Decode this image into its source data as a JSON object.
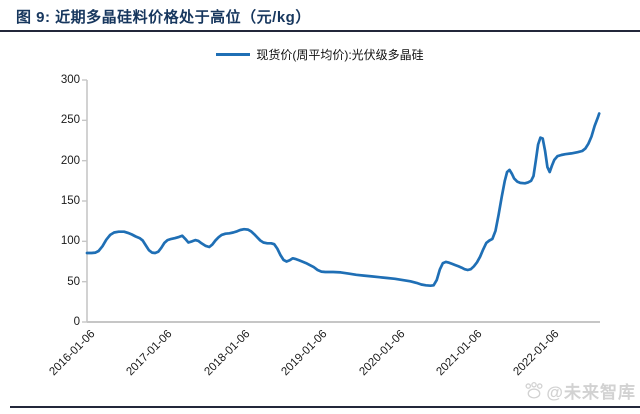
{
  "figure": {
    "title": "图 9: 近期多晶硅料价格处于高位（元/kg）"
  },
  "watermark": {
    "text": "@未来智库"
  },
  "chart_data": {
    "type": "line",
    "title": "图 9: 近期多晶硅料价格处于高位（元/kg）",
    "unit": "元/kg",
    "legend_label": "现货价(周平均价):光伏级多晶硅",
    "legend_position": "top-center",
    "grid": false,
    "line_color": "#1F6FB5",
    "axis_color": "#c6c6c6",
    "ylim": [
      0,
      300
    ],
    "y_ticks": [
      0,
      50,
      100,
      150,
      200,
      250,
      300
    ],
    "x_tick_labels": [
      "2016-01-06",
      "2017-01-06",
      "2018-01-06",
      "2019-01-06",
      "2020-01-06",
      "2021-01-06",
      "2022-01-06"
    ],
    "x_tick_years": [
      2016.02,
      2017.02,
      2018.02,
      2019.02,
      2020.02,
      2021.02,
      2022.02
    ],
    "xlim_years": [
      2016.02,
      2022.65
    ],
    "series": [
      {
        "name": "现货价(周平均价):光伏级多晶硅",
        "points_year_value": [
          [
            2016.02,
            85.5
          ],
          [
            2016.08,
            85.5
          ],
          [
            2016.13,
            86
          ],
          [
            2016.17,
            88
          ],
          [
            2016.22,
            94
          ],
          [
            2016.27,
            102
          ],
          [
            2016.32,
            108
          ],
          [
            2016.37,
            111
          ],
          [
            2016.43,
            112
          ],
          [
            2016.5,
            112
          ],
          [
            2016.55,
            110.5
          ],
          [
            2016.6,
            108.5
          ],
          [
            2016.65,
            106
          ],
          [
            2016.7,
            104
          ],
          [
            2016.74,
            101
          ],
          [
            2016.78,
            95
          ],
          [
            2016.82,
            89
          ],
          [
            2016.86,
            86
          ],
          [
            2016.9,
            85.5
          ],
          [
            2016.94,
            87
          ],
          [
            2016.98,
            92
          ],
          [
            2017.02,
            98
          ],
          [
            2017.06,
            101.5
          ],
          [
            2017.11,
            103
          ],
          [
            2017.16,
            104
          ],
          [
            2017.21,
            105.5
          ],
          [
            2017.25,
            107
          ],
          [
            2017.29,
            103
          ],
          [
            2017.33,
            98.5
          ],
          [
            2017.38,
            100
          ],
          [
            2017.42,
            101.5
          ],
          [
            2017.46,
            100.5
          ],
          [
            2017.5,
            97.5
          ],
          [
            2017.55,
            94.5
          ],
          [
            2017.6,
            93
          ],
          [
            2017.64,
            96
          ],
          [
            2017.68,
            101
          ],
          [
            2017.72,
            105
          ],
          [
            2017.76,
            108
          ],
          [
            2017.81,
            109.5
          ],
          [
            2017.86,
            110
          ],
          [
            2017.91,
            111
          ],
          [
            2017.96,
            112.5
          ],
          [
            2018.0,
            114
          ],
          [
            2018.05,
            115
          ],
          [
            2018.1,
            114.5
          ],
          [
            2018.14,
            112.5
          ],
          [
            2018.18,
            109
          ],
          [
            2018.22,
            105
          ],
          [
            2018.26,
            101
          ],
          [
            2018.3,
            98.5
          ],
          [
            2018.35,
            97.5
          ],
          [
            2018.4,
            97.5
          ],
          [
            2018.44,
            96.5
          ],
          [
            2018.48,
            91
          ],
          [
            2018.52,
            83
          ],
          [
            2018.56,
            77
          ],
          [
            2018.6,
            75
          ],
          [
            2018.64,
            76.5
          ],
          [
            2018.68,
            79
          ],
          [
            2018.72,
            78
          ],
          [
            2018.76,
            76.5
          ],
          [
            2018.8,
            75
          ],
          [
            2018.85,
            73
          ],
          [
            2018.9,
            70.5
          ],
          [
            2018.95,
            68
          ],
          [
            2019.0,
            64.5
          ],
          [
            2019.05,
            62.5
          ],
          [
            2019.1,
            62
          ],
          [
            2019.2,
            62
          ],
          [
            2019.3,
            61.5
          ],
          [
            2019.4,
            60
          ],
          [
            2019.5,
            58.5
          ],
          [
            2019.6,
            57.5
          ],
          [
            2019.7,
            56.5
          ],
          [
            2019.8,
            55.5
          ],
          [
            2019.9,
            54.5
          ],
          [
            2020.0,
            53.5
          ],
          [
            2020.1,
            52
          ],
          [
            2020.2,
            50.5
          ],
          [
            2020.28,
            48.5
          ],
          [
            2020.34,
            46.5
          ],
          [
            2020.4,
            45.5
          ],
          [
            2020.46,
            45
          ],
          [
            2020.5,
            45.5
          ],
          [
            2020.54,
            52
          ],
          [
            2020.58,
            65
          ],
          [
            2020.62,
            73
          ],
          [
            2020.66,
            74.5
          ],
          [
            2020.7,
            73.5
          ],
          [
            2020.74,
            72
          ],
          [
            2020.78,
            70.5
          ],
          [
            2020.82,
            69
          ],
          [
            2020.86,
            67.5
          ],
          [
            2020.9,
            65.5
          ],
          [
            2020.94,
            64.5
          ],
          [
            2020.98,
            65.5
          ],
          [
            2021.02,
            69
          ],
          [
            2021.06,
            74
          ],
          [
            2021.1,
            81
          ],
          [
            2021.14,
            90
          ],
          [
            2021.18,
            98
          ],
          [
            2021.22,
            101
          ],
          [
            2021.26,
            103
          ],
          [
            2021.3,
            113
          ],
          [
            2021.34,
            133
          ],
          [
            2021.38,
            155
          ],
          [
            2021.42,
            175
          ],
          [
            2021.45,
            186
          ],
          [
            2021.48,
            188.5
          ],
          [
            2021.51,
            184
          ],
          [
            2021.54,
            178
          ],
          [
            2021.58,
            174
          ],
          [
            2021.62,
            172.5
          ],
          [
            2021.68,
            172
          ],
          [
            2021.72,
            173
          ],
          [
            2021.76,
            175
          ],
          [
            2021.79,
            181
          ],
          [
            2021.82,
            200
          ],
          [
            2021.85,
            220
          ],
          [
            2021.88,
            228.5
          ],
          [
            2021.91,
            227.5
          ],
          [
            2021.94,
            212
          ],
          [
            2021.97,
            192
          ],
          [
            2022.0,
            186
          ],
          [
            2022.03,
            194
          ],
          [
            2022.06,
            201
          ],
          [
            2022.1,
            205.5
          ],
          [
            2022.15,
            207
          ],
          [
            2022.2,
            208
          ],
          [
            2022.28,
            209
          ],
          [
            2022.36,
            210.5
          ],
          [
            2022.42,
            212
          ],
          [
            2022.46,
            215
          ],
          [
            2022.5,
            221
          ],
          [
            2022.54,
            230
          ],
          [
            2022.58,
            243
          ],
          [
            2022.62,
            253
          ],
          [
            2022.64,
            258.5
          ]
        ]
      }
    ]
  }
}
